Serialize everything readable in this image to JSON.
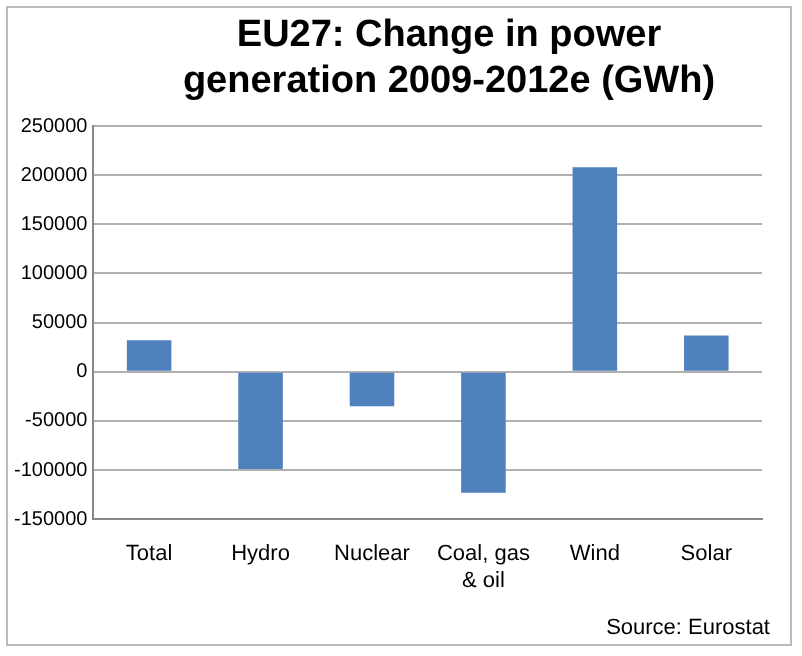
{
  "chart_data": {
    "type": "bar",
    "title": "EU27: Change in power generation 2009-2012e (GWh)",
    "categories": [
      "Total",
      "Hydro",
      "Nuclear",
      "Coal, gas & oil",
      "Wind",
      "Solar"
    ],
    "values": [
      32000,
      -99000,
      -35000,
      -123000,
      208000,
      37000
    ],
    "color": "#4f81bd",
    "ylim": [
      -150000,
      250000
    ],
    "yticks": [
      -150000,
      -100000,
      -50000,
      0,
      50000,
      100000,
      150000,
      200000,
      250000
    ],
    "grid": "y",
    "legend": false,
    "annotations": [
      "Source: Eurostat"
    ]
  }
}
